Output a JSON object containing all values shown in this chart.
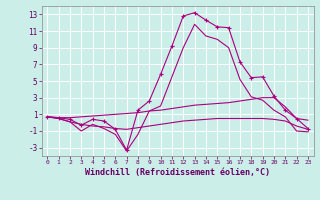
{
  "xlabel": "Windchill (Refroidissement éolien,°C)",
  "background_color": "#cceee8",
  "grid_color": "#ffffff",
  "line_color": "#aa007f",
  "hours": [
    0,
    1,
    2,
    3,
    4,
    5,
    6,
    7,
    8,
    9,
    10,
    11,
    12,
    13,
    14,
    15,
    16,
    17,
    18,
    19,
    20,
    21,
    22,
    23
  ],
  "series1": [
    0.7,
    0.6,
    0.4,
    -0.3,
    0.4,
    0.2,
    -0.8,
    -3.3,
    1.5,
    2.6,
    5.8,
    9.2,
    12.8,
    13.2,
    12.3,
    11.5,
    11.4,
    7.3,
    5.4,
    5.5,
    3.2,
    1.5,
    0.5,
    -0.7
  ],
  "series2": [
    0.7,
    0.5,
    0.1,
    -1.0,
    -0.2,
    -0.7,
    -1.4,
    -3.4,
    -1.4,
    1.4,
    2.0,
    5.5,
    9.0,
    11.8,
    10.4,
    10.0,
    9.0,
    5.2,
    3.1,
    2.7,
    1.5,
    0.7,
    -1.0,
    -1.1
  ],
  "series3": [
    0.7,
    0.6,
    0.6,
    0.7,
    0.8,
    0.9,
    1.0,
    1.1,
    1.2,
    1.4,
    1.5,
    1.7,
    1.9,
    2.1,
    2.2,
    2.3,
    2.4,
    2.6,
    2.8,
    3.0,
    3.0,
    1.9,
    0.5,
    0.3
  ],
  "series4": [
    0.7,
    0.5,
    0.1,
    -0.2,
    -0.4,
    -0.5,
    -0.7,
    -0.8,
    -0.6,
    -0.4,
    -0.2,
    0.0,
    0.2,
    0.3,
    0.4,
    0.5,
    0.5,
    0.5,
    0.5,
    0.5,
    0.4,
    0.2,
    -0.4,
    -0.8
  ],
  "ylim": [
    -4,
    14
  ],
  "yticks": [
    -3,
    -1,
    1,
    3,
    5,
    7,
    9,
    11,
    13
  ],
  "marker": "+"
}
